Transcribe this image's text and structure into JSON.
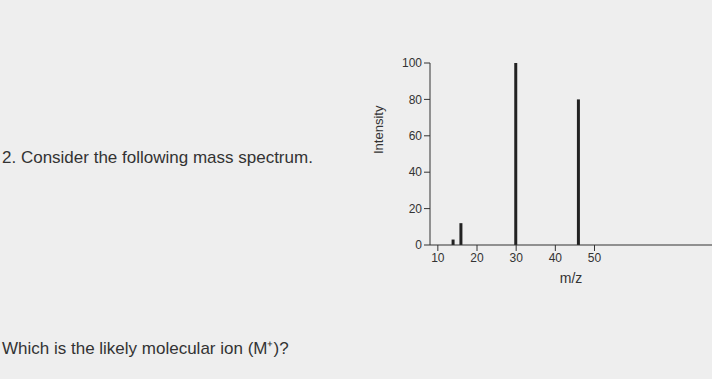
{
  "chart_data": {
    "type": "bar",
    "annotations": [
      "2. Consider the following mass spectrum.",
      "Which is the likely molecular ion (M⁺)?"
    ],
    "x_label": "m/z",
    "y_label": "Intensity",
    "x": [
      14,
      16,
      30,
      46
    ],
    "values": [
      3,
      12,
      100,
      80
    ],
    "color": "#222222",
    "xlim": [
      8,
      80
    ],
    "xticks": [
      10,
      20,
      30,
      40,
      50
    ],
    "ylim": [
      0,
      100
    ],
    "yticks": [
      0,
      20,
      40,
      60,
      80,
      100
    ],
    "grid": false
  }
}
